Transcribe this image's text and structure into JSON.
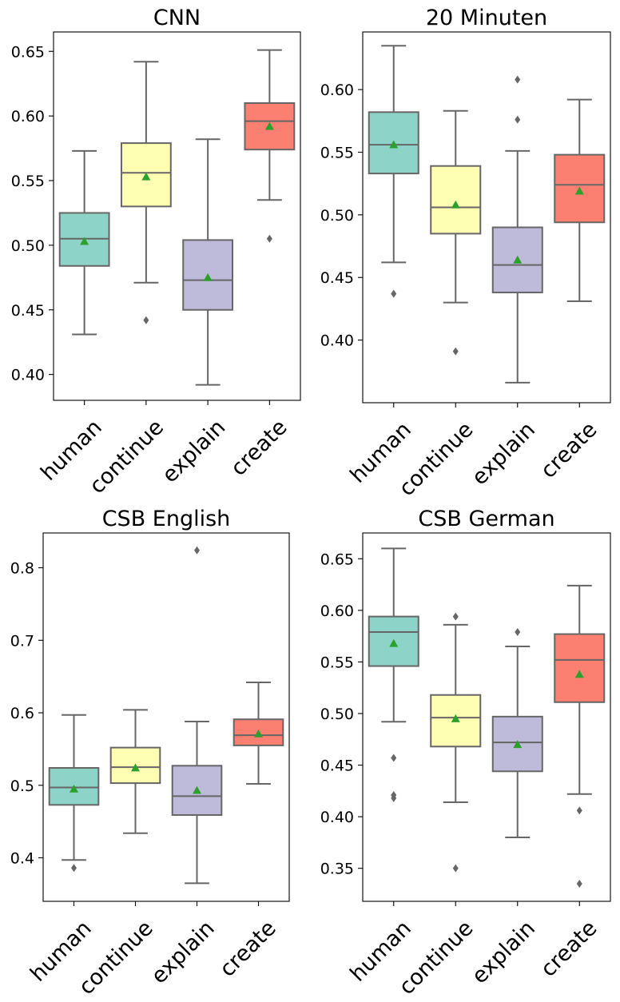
{
  "chart_data": [
    {
      "type": "box",
      "title": "CNN",
      "categories": [
        "human",
        "continue",
        "explain",
        "create"
      ],
      "ylim": [
        0.38,
        0.665
      ],
      "yticks": [
        0.4,
        0.45,
        0.5,
        0.55,
        0.6,
        0.65
      ],
      "ytick_labels": [
        "0.40",
        "0.45",
        "0.50",
        "0.55",
        "0.60",
        "0.65"
      ],
      "colors": [
        "#8dd3c7",
        "#ffffb3",
        "#bebada",
        "#fb8072"
      ],
      "boxes": [
        {
          "whislo": 0.431,
          "q1": 0.484,
          "med": 0.505,
          "q3": 0.525,
          "whishi": 0.573,
          "mean": 0.503,
          "fliers": []
        },
        {
          "whislo": 0.471,
          "q1": 0.53,
          "med": 0.556,
          "q3": 0.579,
          "whishi": 0.642,
          "mean": 0.553,
          "fliers": [
            0.442
          ]
        },
        {
          "whislo": 0.392,
          "q1": 0.45,
          "med": 0.473,
          "q3": 0.504,
          "whishi": 0.582,
          "mean": 0.475,
          "fliers": []
        },
        {
          "whislo": 0.535,
          "q1": 0.574,
          "med": 0.596,
          "q3": 0.61,
          "whishi": 0.651,
          "mean": 0.592,
          "fliers": [
            0.505
          ]
        }
      ]
    },
    {
      "type": "box",
      "title": "20 Minuten",
      "categories": [
        "human",
        "continue",
        "explain",
        "create"
      ],
      "ylim": [
        0.35,
        0.646
      ],
      "yticks": [
        0.4,
        0.45,
        0.5,
        0.55,
        0.6
      ],
      "ytick_labels": [
        "0.40",
        "0.45",
        "0.50",
        "0.55",
        "0.60"
      ],
      "colors": [
        "#8dd3c7",
        "#ffffb3",
        "#bebada",
        "#fb8072"
      ],
      "boxes": [
        {
          "whislo": 0.462,
          "q1": 0.533,
          "med": 0.556,
          "q3": 0.582,
          "whishi": 0.635,
          "mean": 0.556,
          "fliers": [
            0.437
          ]
        },
        {
          "whislo": 0.43,
          "q1": 0.485,
          "med": 0.506,
          "q3": 0.539,
          "whishi": 0.583,
          "mean": 0.508,
          "fliers": [
            0.391
          ]
        },
        {
          "whislo": 0.366,
          "q1": 0.438,
          "med": 0.46,
          "q3": 0.49,
          "whishi": 0.551,
          "mean": 0.464,
          "fliers": [
            0.576,
            0.608
          ]
        },
        {
          "whislo": 0.431,
          "q1": 0.494,
          "med": 0.524,
          "q3": 0.548,
          "whishi": 0.592,
          "mean": 0.519,
          "fliers": []
        }
      ]
    },
    {
      "type": "box",
      "title": "CSB English",
      "categories": [
        "human",
        "continue",
        "explain",
        "create"
      ],
      "ylim": [
        0.34,
        0.848
      ],
      "yticks": [
        0.4,
        0.5,
        0.6,
        0.7,
        0.8
      ],
      "ytick_labels": [
        "0.4",
        "0.5",
        "0.6",
        "0.7",
        "0.8"
      ],
      "colors": [
        "#8dd3c7",
        "#ffffb3",
        "#bebada",
        "#fb8072"
      ],
      "boxes": [
        {
          "whislo": 0.397,
          "q1": 0.473,
          "med": 0.497,
          "q3": 0.524,
          "whishi": 0.597,
          "mean": 0.495,
          "fliers": [
            0.386
          ]
        },
        {
          "whislo": 0.434,
          "q1": 0.503,
          "med": 0.525,
          "q3": 0.552,
          "whishi": 0.604,
          "mean": 0.524,
          "fliers": []
        },
        {
          "whislo": 0.365,
          "q1": 0.459,
          "med": 0.485,
          "q3": 0.527,
          "whishi": 0.588,
          "mean": 0.493,
          "fliers": [
            0.824
          ]
        },
        {
          "whislo": 0.502,
          "q1": 0.555,
          "med": 0.569,
          "q3": 0.591,
          "whishi": 0.642,
          "mean": 0.571,
          "fliers": []
        }
      ]
    },
    {
      "type": "box",
      "title": "CSB German",
      "categories": [
        "human",
        "continue",
        "explain",
        "create"
      ],
      "ylim": [
        0.318,
        0.675
      ],
      "yticks": [
        0.35,
        0.4,
        0.45,
        0.5,
        0.55,
        0.6,
        0.65
      ],
      "ytick_labels": [
        "0.35",
        "0.40",
        "0.45",
        "0.50",
        "0.55",
        "0.60",
        "0.65"
      ],
      "colors": [
        "#8dd3c7",
        "#ffffb3",
        "#bebada",
        "#fb8072"
      ],
      "boxes": [
        {
          "whislo": 0.492,
          "q1": 0.546,
          "med": 0.579,
          "q3": 0.594,
          "whishi": 0.66,
          "mean": 0.568,
          "fliers": [
            0.457,
            0.421,
            0.418
          ]
        },
        {
          "whislo": 0.414,
          "q1": 0.468,
          "med": 0.496,
          "q3": 0.518,
          "whishi": 0.586,
          "mean": 0.495,
          "fliers": [
            0.594,
            0.35
          ]
        },
        {
          "whislo": 0.38,
          "q1": 0.444,
          "med": 0.472,
          "q3": 0.497,
          "whishi": 0.565,
          "mean": 0.47,
          "fliers": [
            0.579
          ]
        },
        {
          "whislo": 0.422,
          "q1": 0.511,
          "med": 0.552,
          "q3": 0.577,
          "whishi": 0.624,
          "mean": 0.538,
          "fliers": [
            0.406,
            0.335
          ]
        }
      ]
    }
  ]
}
